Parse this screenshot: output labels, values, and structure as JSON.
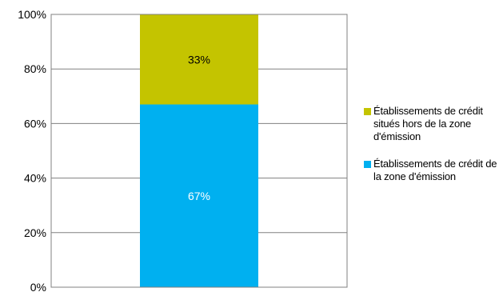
{
  "chart_data": {
    "type": "bar",
    "stacked": true,
    "percent": true,
    "categories": [
      ""
    ],
    "series": [
      {
        "name": "Établissements de crédit de la zone d'émission",
        "values": [
          67
        ],
        "label": "67%",
        "color": "#00B0F0",
        "label_color": "#ffffff"
      },
      {
        "name": "Établissements de crédit situés hors de la zone d'émission",
        "values": [
          33
        ],
        "label": "33%",
        "color": "#C4C400",
        "label_color": "#000000"
      }
    ],
    "ylim": [
      0,
      100
    ],
    "yticks": [
      "0%",
      "20%",
      "40%",
      "60%",
      "80%",
      "100%"
    ],
    "grid": true,
    "legend_position": "right",
    "legend_order": [
      1,
      0
    ]
  }
}
